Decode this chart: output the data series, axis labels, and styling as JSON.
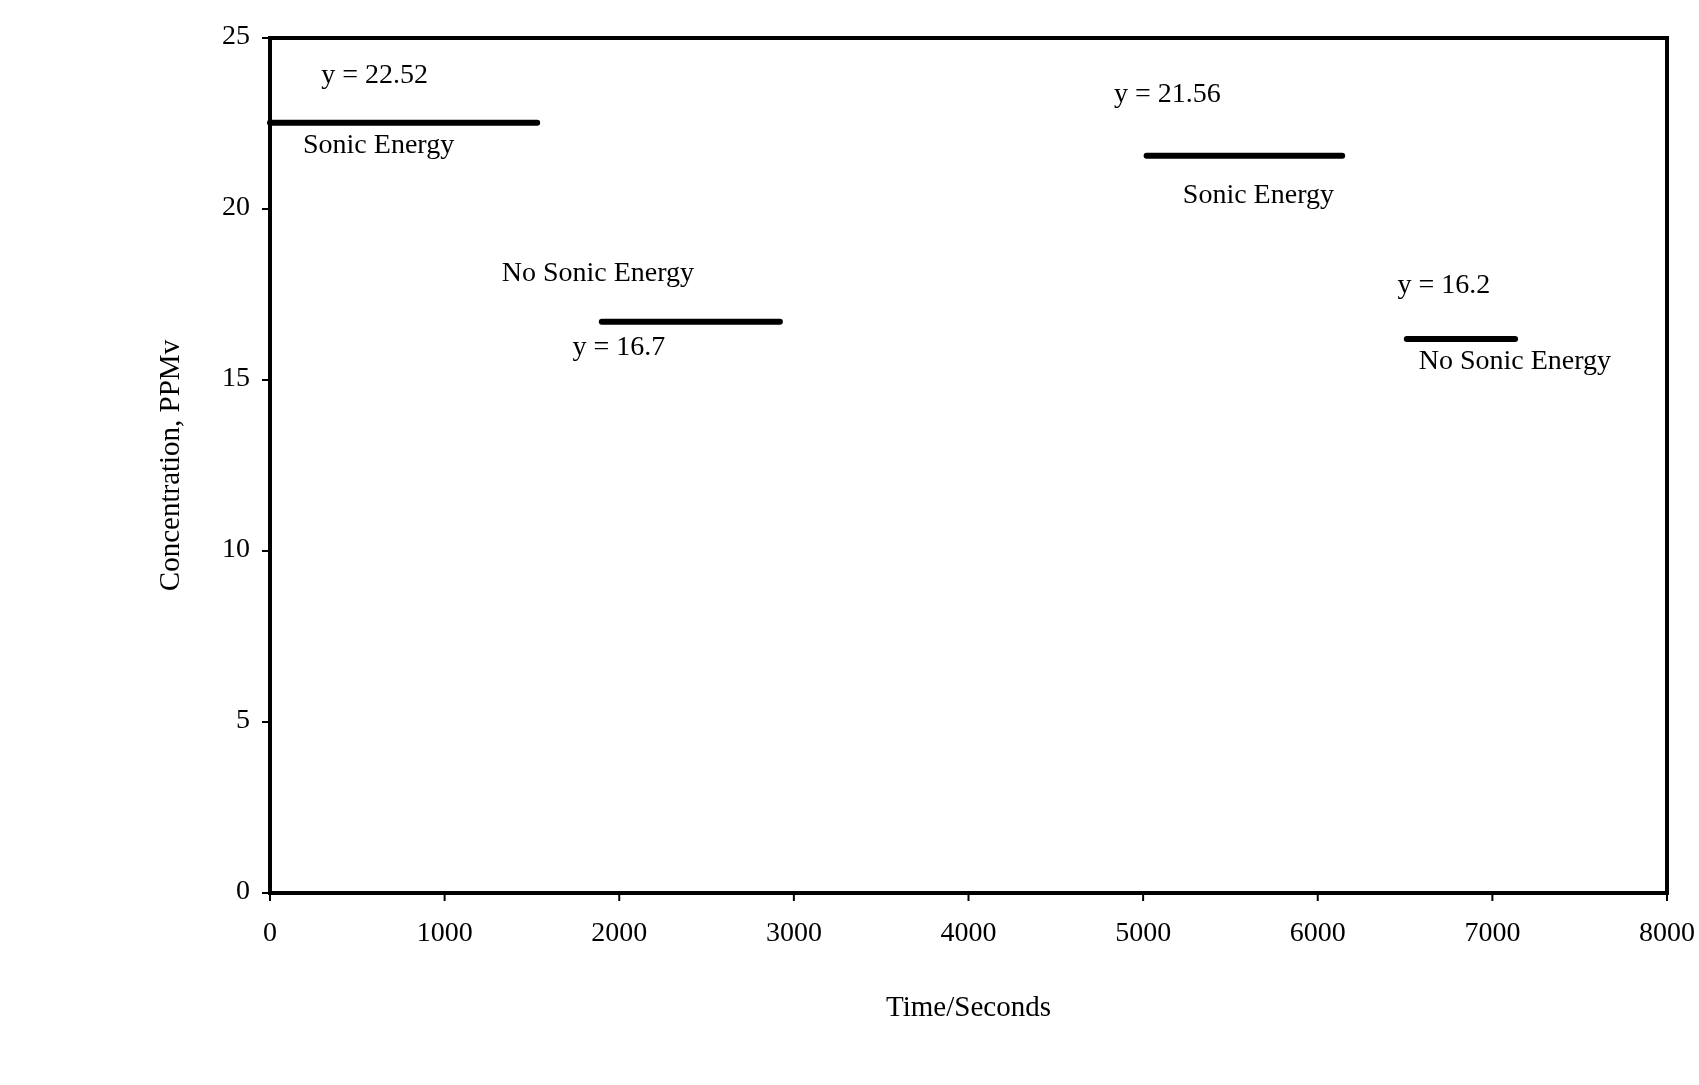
{
  "chart_data": {
    "type": "line",
    "xlabel": "Time/Seconds",
    "ylabel": "Concentration, PPMv",
    "xlim": [
      0,
      8000
    ],
    "xticks": [
      0,
      1000,
      2000,
      3000,
      4000,
      5000,
      6000,
      7000,
      8000
    ],
    "ylim": [
      0,
      25
    ],
    "yticks": [
      0,
      5,
      10,
      15,
      20,
      25
    ],
    "grid": false,
    "marker": "none",
    "line_style": "solid",
    "series": [
      {
        "color": "#000000",
        "x": [
          0,
          1530
        ],
        "values": [
          22.52,
          22.52
        ]
      },
      {
        "color": "#000000",
        "x": [
          1900,
          2920
        ],
        "values": [
          16.7,
          16.7
        ]
      },
      {
        "color": "#000000",
        "x": [
          5020,
          6140
        ],
        "values": [
          21.56,
          21.56
        ]
      },
      {
        "color": "#000000",
        "x": [
          6510,
          7130
        ],
        "values": [
          16.2,
          16.2
        ]
      }
    ],
    "annotations": [
      "y = 22.52",
      "Sonic Energy",
      "No Sonic Energy",
      "y = 16.7",
      "y = 21.56",
      "Sonic Energy",
      "y = 16.2",
      "No Sonic Energy"
    ]
  }
}
